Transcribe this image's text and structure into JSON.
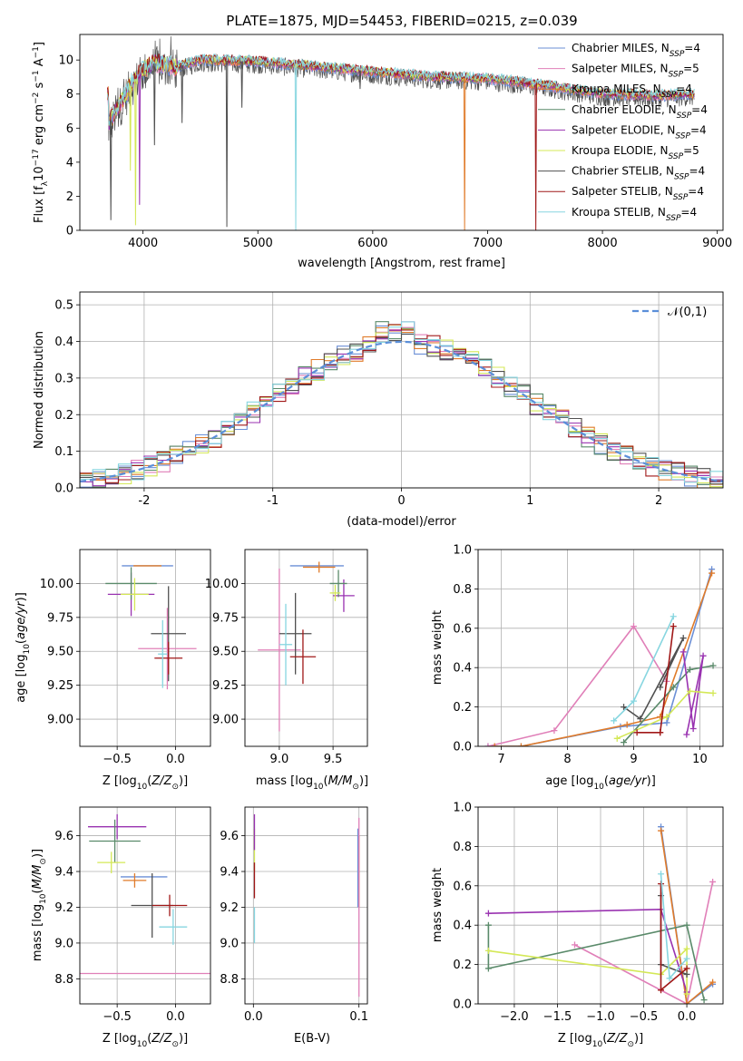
{
  "figure": {
    "title": "PLATE=1875, MJD=54453, FIBERID=0215, z=0.039"
  },
  "colors": {
    "chabrier_miles": "#6b8fd6",
    "salpeter_miles": "#e07fb8",
    "kroupa_miles": "#e07b2a",
    "chabrier_elodie": "#5a8a6a",
    "salpeter_elodie": "#9932b0",
    "kroupa_elodie": "#d4e857",
    "chabrier_stelib": "#505050",
    "salpeter_stelib": "#a01818",
    "kroupa_stelib": "#87d6e0",
    "normal_curve": "#5b8fd9",
    "grid": "#b0b0b0"
  },
  "chart_data": [
    {
      "id": "spectrum",
      "type": "line",
      "title": "PLATE=1875, MJD=54453, FIBERID=0215, z=0.039",
      "xlabel": "wavelength [Angstrom, rest frame]",
      "ylabel": "Flux [f_λ 10^-17 erg cm^-2 s^-1 A^-1]",
      "xlim": [
        3450,
        9050
      ],
      "ylim": [
        0,
        11.5
      ],
      "xticks": [
        4000,
        5000,
        6000,
        7000,
        8000,
        9000
      ],
      "yticks": [
        0,
        2,
        4,
        6,
        8,
        10
      ],
      "grid": false,
      "legend_position": "top-right",
      "legend": [
        {
          "imf": "Chabrier",
          "lib": "MILES",
          "n": "4",
          "color_key": "chabrier_miles"
        },
        {
          "imf": "Salpeter",
          "lib": "MILES",
          "n": "5",
          "color_key": "salpeter_miles"
        },
        {
          "imf": "Kroupa",
          "lib": "MILES",
          "n": "4",
          "color_key": "kroupa_miles"
        },
        {
          "imf": "Chabrier",
          "lib": "ELODIE",
          "n": "4",
          "color_key": "chabrier_elodie"
        },
        {
          "imf": "Salpeter",
          "lib": "ELODIE",
          "n": "4",
          "color_key": "salpeter_elodie"
        },
        {
          "imf": "Kroupa",
          "lib": "ELODIE",
          "n": "5",
          "color_key": "kroupa_elodie"
        },
        {
          "imf": "Chabrier",
          "lib": "STELIB",
          "n": "4",
          "color_key": "chabrier_stelib"
        },
        {
          "imf": "Salpeter",
          "lib": "STELIB",
          "n": "4",
          "color_key": "salpeter_stelib"
        },
        {
          "imf": "Kroupa",
          "lib": "STELIB",
          "n": "4",
          "color_key": "kroupa_stelib"
        }
      ],
      "continuum": [
        [
          3700,
          6.2
        ],
        [
          3800,
          7.4
        ],
        [
          3900,
          8.6
        ],
        [
          4000,
          9.4
        ],
        [
          4100,
          9.8
        ],
        [
          4300,
          9.6
        ],
        [
          4500,
          10.0
        ],
        [
          5000,
          9.9
        ],
        [
          5500,
          9.6
        ],
        [
          6000,
          9.3
        ],
        [
          6500,
          9.0
        ],
        [
          7000,
          8.9
        ],
        [
          7500,
          8.5
        ],
        [
          8000,
          8.0
        ],
        [
          8500,
          7.9
        ],
        [
          8800,
          8.0
        ]
      ],
      "range": [
        3690,
        8800
      ],
      "dips": [
        [
          3720,
          0.6,
          "chabrier_stelib"
        ],
        [
          3890,
          3.5,
          "kroupa_elodie"
        ],
        [
          3935,
          0.3,
          "kroupa_elodie"
        ],
        [
          3970,
          1.5,
          "salpeter_elodie"
        ],
        [
          4100,
          5.0,
          "chabrier_stelib"
        ],
        [
          4340,
          6.3,
          "chabrier_stelib"
        ],
        [
          4730,
          0.2,
          "chabrier_stelib"
        ],
        [
          4861,
          7.2,
          "chabrier_stelib"
        ],
        [
          5330,
          0.0,
          "kroupa_stelib"
        ],
        [
          6800,
          0.0,
          "kroupa_miles"
        ],
        [
          7420,
          0.0,
          "salpeter_stelib"
        ],
        [
          5890,
          8.3,
          "chabrier_stelib"
        ]
      ]
    },
    {
      "id": "residuals",
      "type": "histogram",
      "xlabel": "(data-model)/error",
      "ylabel": "Normed distribution",
      "xlim": [
        -2.5,
        2.5
      ],
      "ylim": [
        0,
        0.535
      ],
      "xticks": [
        -2,
        -1,
        0,
        1,
        2
      ],
      "yticks": [
        0.0,
        0.1,
        0.2,
        0.3,
        0.4,
        0.5
      ],
      "grid": true,
      "legend_position": "top-right",
      "legend": [
        {
          "name": "𝒩(0,1)",
          "style": "dashed",
          "color_key": "normal_curve"
        }
      ],
      "bin_width": 0.1
    },
    {
      "id": "age_vs_Z",
      "type": "errorbar",
      "xlabel": "Z [log10(Z/Z☉)]",
      "ylabel": "age [log10(age/yr)]",
      "xlim": [
        -0.82,
        0.3
      ],
      "ylim": [
        8.8,
        10.25
      ],
      "xticks": [
        -0.5,
        0.0
      ],
      "yticks": [
        9.0,
        9.25,
        9.5,
        9.75,
        10.0
      ],
      "grid": true,
      "points": [
        {
          "x": -0.24,
          "y": 10.13,
          "xerr": 0.22,
          "yerr": 0.0,
          "color_key": "chabrier_miles"
        },
        {
          "x": -0.24,
          "y": 10.13,
          "xerr": 0.12,
          "yerr": 0.0,
          "color_key": "kroupa_miles"
        },
        {
          "x": -0.38,
          "y": 9.92,
          "xerr": 0.2,
          "yerr": 0.16,
          "color_key": "salpeter_elodie"
        },
        {
          "x": -0.38,
          "y": 10.0,
          "xerr": 0.22,
          "yerr": 0.12,
          "color_key": "chabrier_elodie"
        },
        {
          "x": -0.35,
          "y": 9.92,
          "xerr": 0.12,
          "yerr": 0.12,
          "color_key": "kroupa_elodie"
        },
        {
          "x": -0.07,
          "y": 9.52,
          "xerr": 0.25,
          "yerr": 0.3,
          "color_key": "salpeter_miles"
        },
        {
          "x": -0.06,
          "y": 9.63,
          "xerr": 0.15,
          "yerr": 0.35,
          "color_key": "chabrier_stelib"
        },
        {
          "x": -0.06,
          "y": 9.45,
          "xerr": 0.12,
          "yerr": 0.12,
          "color_key": "salpeter_stelib"
        },
        {
          "x": -0.11,
          "y": 9.48,
          "xerr": 0.04,
          "yerr": 0.25,
          "color_key": "kroupa_stelib"
        }
      ]
    },
    {
      "id": "age_vs_mass",
      "type": "errorbar",
      "xlabel": "mass [log10(M/M☉)]",
      "ylabel": "",
      "xlim": [
        8.68,
        9.82
      ],
      "ylim": [
        8.8,
        10.25
      ],
      "xticks": [
        9.0,
        9.5
      ],
      "yticks": [
        9.0,
        9.25,
        9.5,
        9.75,
        10.0
      ],
      "grid": true,
      "points": [
        {
          "x": 9.35,
          "y": 10.13,
          "xerr": 0.25,
          "yerr": 0.0,
          "color_key": "chabrier_miles"
        },
        {
          "x": 9.37,
          "y": 10.12,
          "xerr": 0.15,
          "yerr": 0.04,
          "color_key": "kroupa_miles"
        },
        {
          "x": 9.6,
          "y": 9.91,
          "xerr": 0.1,
          "yerr": 0.12,
          "color_key": "salpeter_elodie"
        },
        {
          "x": 9.55,
          "y": 10.0,
          "xerr": 0.08,
          "yerr": 0.1,
          "color_key": "chabrier_elodie"
        },
        {
          "x": 9.52,
          "y": 9.93,
          "xerr": 0.05,
          "yerr": 0.06,
          "color_key": "kroupa_elodie"
        },
        {
          "x": 9.0,
          "y": 9.51,
          "xerr": 0.2,
          "yerr": 0.6,
          "color_key": "salpeter_miles"
        },
        {
          "x": 9.15,
          "y": 9.63,
          "xerr": 0.15,
          "yerr": 0.3,
          "color_key": "chabrier_stelib"
        },
        {
          "x": 9.22,
          "y": 9.46,
          "xerr": 0.12,
          "yerr": 0.2,
          "color_key": "salpeter_stelib"
        },
        {
          "x": 9.06,
          "y": 9.55,
          "xerr": 0.06,
          "yerr": 0.3,
          "color_key": "kroupa_stelib"
        }
      ]
    },
    {
      "id": "massweight_vs_age",
      "type": "line",
      "xlabel": "age [log10(age/yr)]",
      "ylabel": "mass weight",
      "xlim": [
        6.65,
        10.35
      ],
      "ylim": [
        0.0,
        1.0
      ],
      "xticks": [
        7,
        8,
        9,
        10
      ],
      "yticks": [
        0.0,
        0.2,
        0.4,
        0.6,
        0.8,
        1.0
      ],
      "grid": true,
      "series": [
        {
          "color_key": "chabrier_miles",
          "points": [
            [
              6.8,
              0.0
            ],
            [
              7.3,
              0.0
            ],
            [
              8.8,
              0.1
            ],
            [
              9.5,
              0.12
            ],
            [
              10.18,
              0.9
            ]
          ]
        },
        {
          "color_key": "salpeter_miles",
          "points": [
            [
              6.8,
              0.0
            ],
            [
              7.8,
              0.08
            ],
            [
              9.0,
              0.61
            ],
            [
              9.5,
              0.33
            ]
          ]
        },
        {
          "color_key": "kroupa_miles",
          "points": [
            [
              6.9,
              0.0
            ],
            [
              7.3,
              0.0
            ],
            [
              8.9,
              0.11
            ],
            [
              9.4,
              0.15
            ],
            [
              10.18,
              0.88
            ]
          ]
        },
        {
          "color_key": "chabrier_elodie",
          "points": [
            [
              8.85,
              0.02
            ],
            [
              9.6,
              0.3
            ],
            [
              9.85,
              0.39
            ],
            [
              10.2,
              0.41
            ]
          ]
        },
        {
          "color_key": "salpeter_elodie",
          "points": [
            [
              9.8,
              0.06
            ],
            [
              10.05,
              0.46
            ],
            [
              9.9,
              0.09
            ],
            [
              9.75,
              0.48
            ]
          ]
        },
        {
          "color_key": "kroupa_elodie",
          "points": [
            [
              8.75,
              0.04
            ],
            [
              9.5,
              0.15
            ],
            [
              9.85,
              0.28
            ],
            [
              10.2,
              0.27
            ]
          ]
        },
        {
          "color_key": "chabrier_stelib",
          "points": [
            [
              8.85,
              0.2
            ],
            [
              9.1,
              0.14
            ],
            [
              9.75,
              0.55
            ],
            [
              9.4,
              0.3
            ]
          ]
        },
        {
          "color_key": "salpeter_stelib",
          "points": [
            [
              9.05,
              0.07
            ],
            [
              9.4,
              0.07
            ],
            [
              9.6,
              0.61
            ],
            [
              9.4,
              0.07
            ]
          ]
        },
        {
          "color_key": "kroupa_stelib",
          "points": [
            [
              8.7,
              0.13
            ],
            [
              9.0,
              0.23
            ],
            [
              9.6,
              0.66
            ]
          ]
        }
      ]
    },
    {
      "id": "mass_vs_Z",
      "type": "errorbar",
      "xlabel": "Z [log10(Z/Z☉)]",
      "ylabel": "mass [log10(M/M☉)]",
      "xlim": [
        -0.82,
        0.3
      ],
      "ylim": [
        8.66,
        9.76
      ],
      "xticks": [
        -0.5,
        0.0
      ],
      "yticks": [
        8.8,
        9.0,
        9.2,
        9.4,
        9.6
      ],
      "grid": true,
      "points": [
        {
          "x": -0.27,
          "y": 9.37,
          "xerr": 0.2,
          "yerr": 0.0,
          "color_key": "chabrier_miles"
        },
        {
          "x": -0.35,
          "y": 9.35,
          "xerr": 0.1,
          "yerr": 0.04,
          "color_key": "kroupa_miles"
        },
        {
          "x": -0.5,
          "y": 9.65,
          "xerr": 0.25,
          "yerr": 0.07,
          "color_key": "salpeter_elodie"
        },
        {
          "x": -0.52,
          "y": 9.57,
          "xerr": 0.22,
          "yerr": 0.12,
          "color_key": "chabrier_elodie"
        },
        {
          "x": -0.55,
          "y": 9.45,
          "xerr": 0.12,
          "yerr": 0.06,
          "color_key": "kroupa_elodie"
        },
        {
          "x": -0.3,
          "y": 8.83,
          "xerr": 0.6,
          "yerr": 0.0,
          "color_key": "salpeter_miles"
        },
        {
          "x": -0.2,
          "y": 9.21,
          "xerr": 0.18,
          "yerr": 0.18,
          "color_key": "chabrier_stelib"
        },
        {
          "x": -0.05,
          "y": 9.21,
          "xerr": 0.15,
          "yerr": 0.06,
          "color_key": "salpeter_stelib"
        },
        {
          "x": -0.02,
          "y": 9.09,
          "xerr": 0.12,
          "yerr": 0.1,
          "color_key": "kroupa_stelib"
        }
      ]
    },
    {
      "id": "mass_vs_ebv",
      "type": "errorbar",
      "xlabel": "E(B-V)",
      "ylabel": "",
      "xlim": [
        -0.008,
        0.108
      ],
      "ylim": [
        8.66,
        9.76
      ],
      "xticks": [
        0.0,
        0.1
      ],
      "yticks": [
        8.8,
        9.0,
        9.2,
        9.4,
        9.6
      ],
      "grid": true,
      "points": [
        {
          "x": 0.001,
          "y": 9.52,
          "xerr": 0.0,
          "yerr": 0.12,
          "color_key": "kroupa_elodie"
        },
        {
          "x": 0.001,
          "y": 9.62,
          "xerr": 0.0,
          "yerr": 0.1,
          "color_key": "salpeter_elodie"
        },
        {
          "x": 0.001,
          "y": 9.35,
          "xerr": 0.0,
          "yerr": 0.1,
          "color_key": "salpeter_stelib"
        },
        {
          "x": 0.001,
          "y": 9.1,
          "xerr": 0.0,
          "yerr": 0.1,
          "color_key": "kroupa_stelib"
        },
        {
          "x": 0.099,
          "y": 9.42,
          "xerr": 0.0,
          "yerr": 0.22,
          "color_key": "chabrier_miles"
        },
        {
          "x": 0.1,
          "y": 9.4,
          "xerr": 0.0,
          "yerr": 0.2,
          "color_key": "kroupa_miles"
        },
        {
          "x": 0.1,
          "y": 9.2,
          "xerr": 0.0,
          "yerr": 0.5,
          "color_key": "salpeter_miles"
        }
      ]
    },
    {
      "id": "massweight_vs_Z",
      "type": "line",
      "xlabel": "Z [log10(Z/Z☉)]",
      "ylabel": "mass weight",
      "xlim": [
        -2.42,
        0.42
      ],
      "ylim": [
        0.0,
        1.0
      ],
      "xticks": [
        -2.0,
        -1.5,
        -1.0,
        -0.5,
        0.0
      ],
      "yticks": [
        0.0,
        0.2,
        0.4,
        0.6,
        0.8,
        1.0
      ],
      "grid": true,
      "series": [
        {
          "color_key": "chabrier_miles",
          "points": [
            [
              -0.3,
              0.9
            ],
            [
              0.0,
              0.0
            ],
            [
              0.3,
              0.1
            ]
          ]
        },
        {
          "color_key": "salpeter_miles",
          "points": [
            [
              -1.3,
              0.3
            ],
            [
              0.0,
              0.0
            ],
            [
              0.3,
              0.62
            ]
          ]
        },
        {
          "color_key": "kroupa_miles",
          "points": [
            [
              -0.3,
              0.88
            ],
            [
              0.0,
              0.0
            ],
            [
              0.3,
              0.11
            ]
          ]
        },
        {
          "color_key": "chabrier_elodie",
          "points": [
            [
              -2.3,
              0.4
            ],
            [
              -2.3,
              0.18
            ],
            [
              0.0,
              0.4
            ],
            [
              0.2,
              0.02
            ]
          ]
        },
        {
          "color_key": "salpeter_elodie",
          "points": [
            [
              -2.3,
              0.46
            ],
            [
              -0.3,
              0.48
            ],
            [
              0.0,
              0.06
            ]
          ]
        },
        {
          "color_key": "kroupa_elodie",
          "points": [
            [
              -2.3,
              0.27
            ],
            [
              -0.3,
              0.15
            ],
            [
              0.0,
              0.28
            ],
            [
              0.0,
              0.05
            ]
          ]
        },
        {
          "color_key": "chabrier_stelib",
          "points": [
            [
              -0.3,
              0.55
            ],
            [
              -0.3,
              0.2
            ],
            [
              0.0,
              0.15
            ]
          ]
        },
        {
          "color_key": "salpeter_stelib",
          "points": [
            [
              -0.3,
              0.61
            ],
            [
              -0.3,
              0.07
            ],
            [
              0.0,
              0.18
            ]
          ]
        },
        {
          "color_key": "kroupa_stelib",
          "points": [
            [
              -0.3,
              0.66
            ],
            [
              -0.2,
              0.13
            ],
            [
              0.0,
              0.23
            ]
          ]
        }
      ]
    }
  ]
}
